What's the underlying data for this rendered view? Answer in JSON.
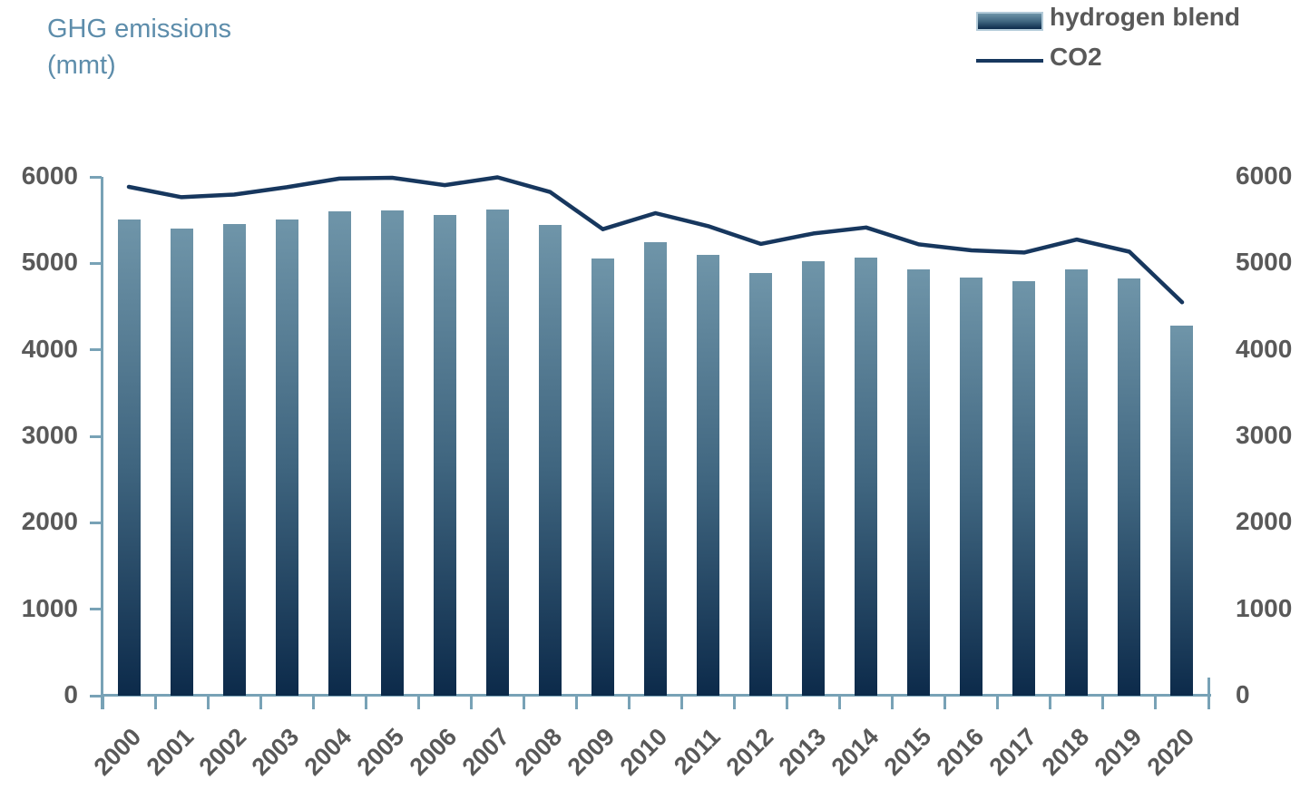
{
  "title": {
    "line1": "GHG emissions",
    "line2": "(mmt)"
  },
  "legend": {
    "items": [
      {
        "label": "hydrogen blend",
        "swatch": "gradient-bar-swatch"
      },
      {
        "label": "CO2",
        "swatch": "line-swatch"
      }
    ],
    "position": "top-right"
  },
  "colors": {
    "bar_top": "#6f95a9",
    "bar_bottom": "#0c2a4a",
    "line_color": "#17375e",
    "axis_color": "#78a2b6",
    "label_gray": "#595959",
    "title_text": "#5d8dab",
    "legend_swatch_border": "#b3cbd9"
  },
  "chart_data": {
    "type": "bar",
    "subtype": "bar-with-line-overlay",
    "title": "GHG emissions (mmt)",
    "categories": [
      "2000",
      "2001",
      "2002",
      "2003",
      "2004",
      "2005",
      "2006",
      "2007",
      "2008",
      "2009",
      "2010",
      "2011",
      "2012",
      "2013",
      "2014",
      "2015",
      "2016",
      "2017",
      "2018",
      "2019",
      "2020"
    ],
    "series": [
      {
        "name": "hydrogen blend",
        "type": "bar",
        "axis": "left",
        "values": [
          5510,
          5405,
          5450,
          5505,
          5605,
          5615,
          5555,
          5625,
          5445,
          5055,
          5240,
          5100,
          4890,
          5020,
          5065,
          4925,
          4835,
          4790,
          4930,
          4820,
          4280
        ]
      },
      {
        "name": "CO2",
        "type": "line",
        "axis": "right",
        "values": [
          5885,
          5765,
          5795,
          5880,
          5980,
          5990,
          5905,
          5995,
          5825,
          5395,
          5580,
          5430,
          5225,
          5345,
          5415,
          5220,
          5150,
          5125,
          5275,
          5135,
          4550
        ]
      }
    ],
    "left_axis": {
      "range": [
        0,
        6000
      ],
      "ticks": [
        0,
        1000,
        2000,
        3000,
        4000,
        5000,
        6000
      ]
    },
    "right_axis": {
      "range": [
        0,
        6000
      ],
      "ticks": [
        0,
        1000,
        2000,
        3000,
        4000,
        5000,
        6000
      ]
    },
    "grid": false,
    "legend_position": "top-right",
    "x_label_rotation_deg": -45
  }
}
